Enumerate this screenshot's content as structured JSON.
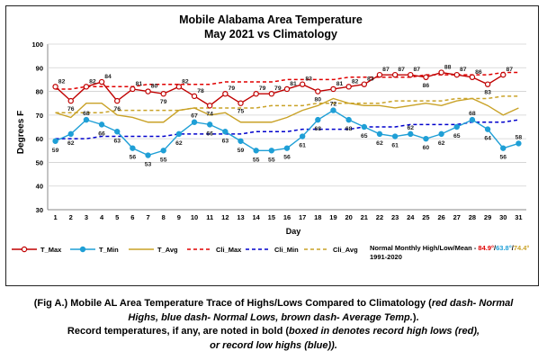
{
  "chart_data": {
    "type": "line",
    "title": "Mobile Alabama Area Temperature",
    "subtitle": "May 2021 vs Climatology",
    "xlabel": "Day",
    "ylabel": "Degrees F",
    "ylim": [
      30,
      100
    ],
    "yticks": [
      30,
      40,
      50,
      60,
      70,
      80,
      90,
      100
    ],
    "x": [
      1,
      2,
      3,
      4,
      5,
      6,
      7,
      8,
      9,
      10,
      11,
      12,
      13,
      14,
      15,
      16,
      17,
      18,
      19,
      20,
      21,
      22,
      23,
      24,
      25,
      26,
      27,
      28,
      29,
      30,
      31
    ],
    "grid": "horizontal",
    "series": [
      {
        "name": "T_Max",
        "color": "#c00000",
        "style": "solid-marker",
        "labels": true,
        "values": [
          82,
          76,
          82,
          84,
          76,
          81,
          80,
          79,
          82,
          78,
          74,
          79,
          75,
          79,
          79,
          81,
          83,
          80,
          81,
          82,
          83,
          87,
          87,
          87,
          86,
          88,
          87,
          86,
          83,
          87,
          null
        ]
      },
      {
        "name": "T_Min",
        "color": "#1f9fd6",
        "style": "solid-marker",
        "labels": true,
        "values": [
          59,
          62,
          68,
          66,
          63,
          56,
          53,
          55,
          62,
          67,
          66,
          63,
          59,
          55,
          55,
          56,
          61,
          68,
          72,
          68,
          65,
          62,
          61,
          62,
          60,
          62,
          65,
          68,
          64,
          56,
          58
        ]
      },
      {
        "name": "T_Avg",
        "color": "#c9a227",
        "style": "solid",
        "values": [
          71,
          69,
          75,
          75,
          70,
          69,
          67,
          67,
          72,
          73,
          70,
          71,
          67,
          67,
          67,
          69,
          72,
          74,
          77,
          75,
          74,
          74,
          73,
          74,
          75,
          74,
          76,
          77,
          74,
          70,
          73
        ]
      },
      {
        "name": "Cli_Max",
        "color": "#e00000",
        "style": "dash",
        "values": [
          81,
          81,
          82,
          82,
          82,
          82,
          83,
          83,
          83,
          83,
          83,
          84,
          84,
          84,
          84,
          85,
          85,
          85,
          85,
          86,
          86,
          86,
          86,
          86,
          87,
          87,
          87,
          87,
          87,
          88,
          88
        ]
      },
      {
        "name": "Cli_Min",
        "color": "#0000cc",
        "style": "dash",
        "values": [
          60,
          60,
          60,
          61,
          61,
          61,
          61,
          61,
          62,
          62,
          62,
          62,
          62,
          63,
          63,
          63,
          64,
          64,
          64,
          64,
          65,
          65,
          65,
          66,
          66,
          66,
          66,
          67,
          67,
          67,
          68
        ]
      },
      {
        "name": "Cli_Avg",
        "color": "#c9a227",
        "style": "dash",
        "values": [
          71,
          71,
          71,
          71,
          72,
          72,
          72,
          72,
          72,
          73,
          73,
          73,
          73,
          73,
          74,
          74,
          74,
          75,
          75,
          75,
          75,
          75,
          76,
          76,
          76,
          76,
          77,
          77,
          77,
          78,
          78
        ]
      }
    ],
    "tmax_labels": [
      "82",
      "76",
      "82",
      "84",
      "76",
      "81",
      "80",
      "79",
      "82",
      "78",
      "74",
      "79",
      "75",
      "79",
      "79",
      "81",
      "83",
      "80",
      "81",
      "82",
      "83",
      "87",
      "87",
      "87",
      "86",
      "88",
      "87",
      "86",
      "83",
      "87"
    ],
    "tmin_labels": [
      "59",
      "62",
      "68",
      "66",
      "63",
      "56",
      "53",
      "55",
      "62",
      "67",
      "66",
      "63",
      "59",
      "55",
      "55",
      "56",
      "61",
      "68",
      "72",
      "68",
      "65",
      "62",
      "61",
      "62",
      "60",
      "62",
      "65",
      "68",
      "64",
      "56",
      "58"
    ],
    "legend": [
      "T_Max",
      "T_Min",
      "T_Avg",
      "Cli_Max",
      "Cli_Min",
      "Cli_Avg"
    ],
    "legend_position": "bottom"
  },
  "normals": {
    "label": "Normal Monthly High/Low/Mean - ",
    "high": "84.9°",
    "low": "63.8°",
    "mean": "74.4°",
    "sep": "/",
    "period": "1991-2020",
    "high_color": "#e00000",
    "low_color": "#1f9fd6",
    "mean_color": "#c9a227"
  },
  "caption": {
    "line1_a": "(Fig A.) Mobile AL Area Temperature Trace of Highs/Lows Compared to Climatology (",
    "line1_b": "red dash- Normal Highs, blue dash- Normal Lows, brown dash- Average Temp.",
    "line1_c": ").",
    "line2_a": "Record temperatures, if any, are noted in bold (",
    "line2_b": "boxed in denotes record high lows (red),",
    "line3": "or record low highs (blue))."
  }
}
